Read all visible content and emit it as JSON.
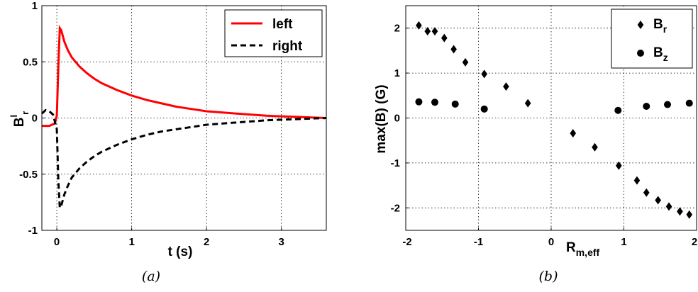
{
  "chart_data": [
    {
      "panel": "a",
      "type": "line",
      "caption_letter": "a",
      "xlabel": "t (s)",
      "ylabel": {
        "base": "B",
        "sup": "l",
        "sub": "r"
      },
      "xlim": [
        -0.2,
        3.6
      ],
      "ylim": [
        -1,
        1
      ],
      "xticks": [
        0,
        1,
        2,
        3
      ],
      "yticks": [
        -1,
        -0.5,
        0,
        0.5,
        1
      ],
      "xtick_labels": [
        "0",
        "1",
        "2",
        "3"
      ],
      "ytick_labels": [
        "-1",
        "-0.5",
        "0",
        "0.5",
        "1"
      ],
      "grid": true,
      "legend_position": "top-right",
      "series": [
        {
          "name": "left",
          "color": "#ff0000",
          "style": "solid",
          "x": [
            -0.2,
            -0.1,
            -0.03,
            0.0,
            0.02,
            0.04,
            0.06,
            0.1,
            0.15,
            0.2,
            0.3,
            0.4,
            0.5,
            0.6,
            0.7,
            0.8,
            1.0,
            1.2,
            1.4,
            1.6,
            1.8,
            2.0,
            2.2,
            2.4,
            2.6,
            2.8,
            3.0,
            3.2,
            3.4,
            3.6
          ],
          "y": [
            -0.07,
            -0.07,
            -0.05,
            0.02,
            0.45,
            0.8,
            0.78,
            0.68,
            0.6,
            0.54,
            0.46,
            0.4,
            0.35,
            0.31,
            0.28,
            0.25,
            0.2,
            0.16,
            0.13,
            0.1,
            0.08,
            0.06,
            0.05,
            0.04,
            0.03,
            0.02,
            0.015,
            0.01,
            0.005,
            0.0
          ]
        },
        {
          "name": "right",
          "color": "#000000",
          "style": "dashed",
          "x": [
            -0.2,
            -0.15,
            -0.1,
            -0.05,
            0.0,
            0.02,
            0.04,
            0.06,
            0.1,
            0.15,
            0.2,
            0.3,
            0.4,
            0.5,
            0.6,
            0.7,
            0.8,
            1.0,
            1.2,
            1.4,
            1.6,
            1.8,
            2.0,
            2.2,
            2.4,
            2.6,
            2.8,
            3.0,
            3.2,
            3.4,
            3.6
          ],
          "y": [
            0.04,
            0.07,
            0.06,
            0.03,
            -0.1,
            -0.55,
            -0.8,
            -0.78,
            -0.68,
            -0.6,
            -0.53,
            -0.45,
            -0.39,
            -0.34,
            -0.3,
            -0.27,
            -0.24,
            -0.19,
            -0.15,
            -0.12,
            -0.1,
            -0.08,
            -0.06,
            -0.05,
            -0.04,
            -0.03,
            -0.02,
            -0.015,
            -0.01,
            -0.005,
            0.0
          ]
        }
      ]
    },
    {
      "panel": "b",
      "type": "scatter",
      "caption_letter": "b",
      "xlabel": {
        "base": "R",
        "sub": "m,eff"
      },
      "ylabel": "max(B) (G)",
      "xlim": [
        -2,
        2
      ],
      "ylim": [
        -2.5,
        2.5
      ],
      "xticks": [
        -2,
        -1,
        0,
        1,
        2
      ],
      "yticks": [
        -2,
        -1,
        0,
        1,
        2
      ],
      "xtick_labels": [
        "-2",
        "-1",
        "0",
        "1",
        "2"
      ],
      "ytick_labels": [
        "-2",
        "-1",
        "0",
        "1",
        "2"
      ],
      "grid": true,
      "legend_position": "top-right",
      "series": [
        {
          "name": {
            "base": "B",
            "sub": "r"
          },
          "marker": "diamond",
          "color": "#000000",
          "x": [
            -1.82,
            -1.7,
            -1.6,
            -1.47,
            -1.34,
            -1.18,
            -0.92,
            -0.62,
            -0.32,
            0.3,
            0.6,
            0.93,
            1.18,
            1.31,
            1.47,
            1.62,
            1.77,
            1.9
          ],
          "y": [
            2.06,
            1.93,
            1.93,
            1.78,
            1.53,
            1.24,
            0.98,
            0.7,
            0.33,
            -0.34,
            -0.65,
            -1.06,
            -1.39,
            -1.66,
            -1.83,
            -1.97,
            -2.08,
            -2.15
          ]
        },
        {
          "name": {
            "base": "B",
            "sub": "z"
          },
          "marker": "circle",
          "color": "#000000",
          "x": [
            -1.82,
            -1.6,
            -1.32,
            -0.92,
            0.92,
            1.31,
            1.6,
            1.9
          ],
          "y": [
            0.36,
            0.35,
            0.31,
            0.2,
            0.17,
            0.26,
            0.3,
            0.33
          ]
        }
      ]
    }
  ]
}
